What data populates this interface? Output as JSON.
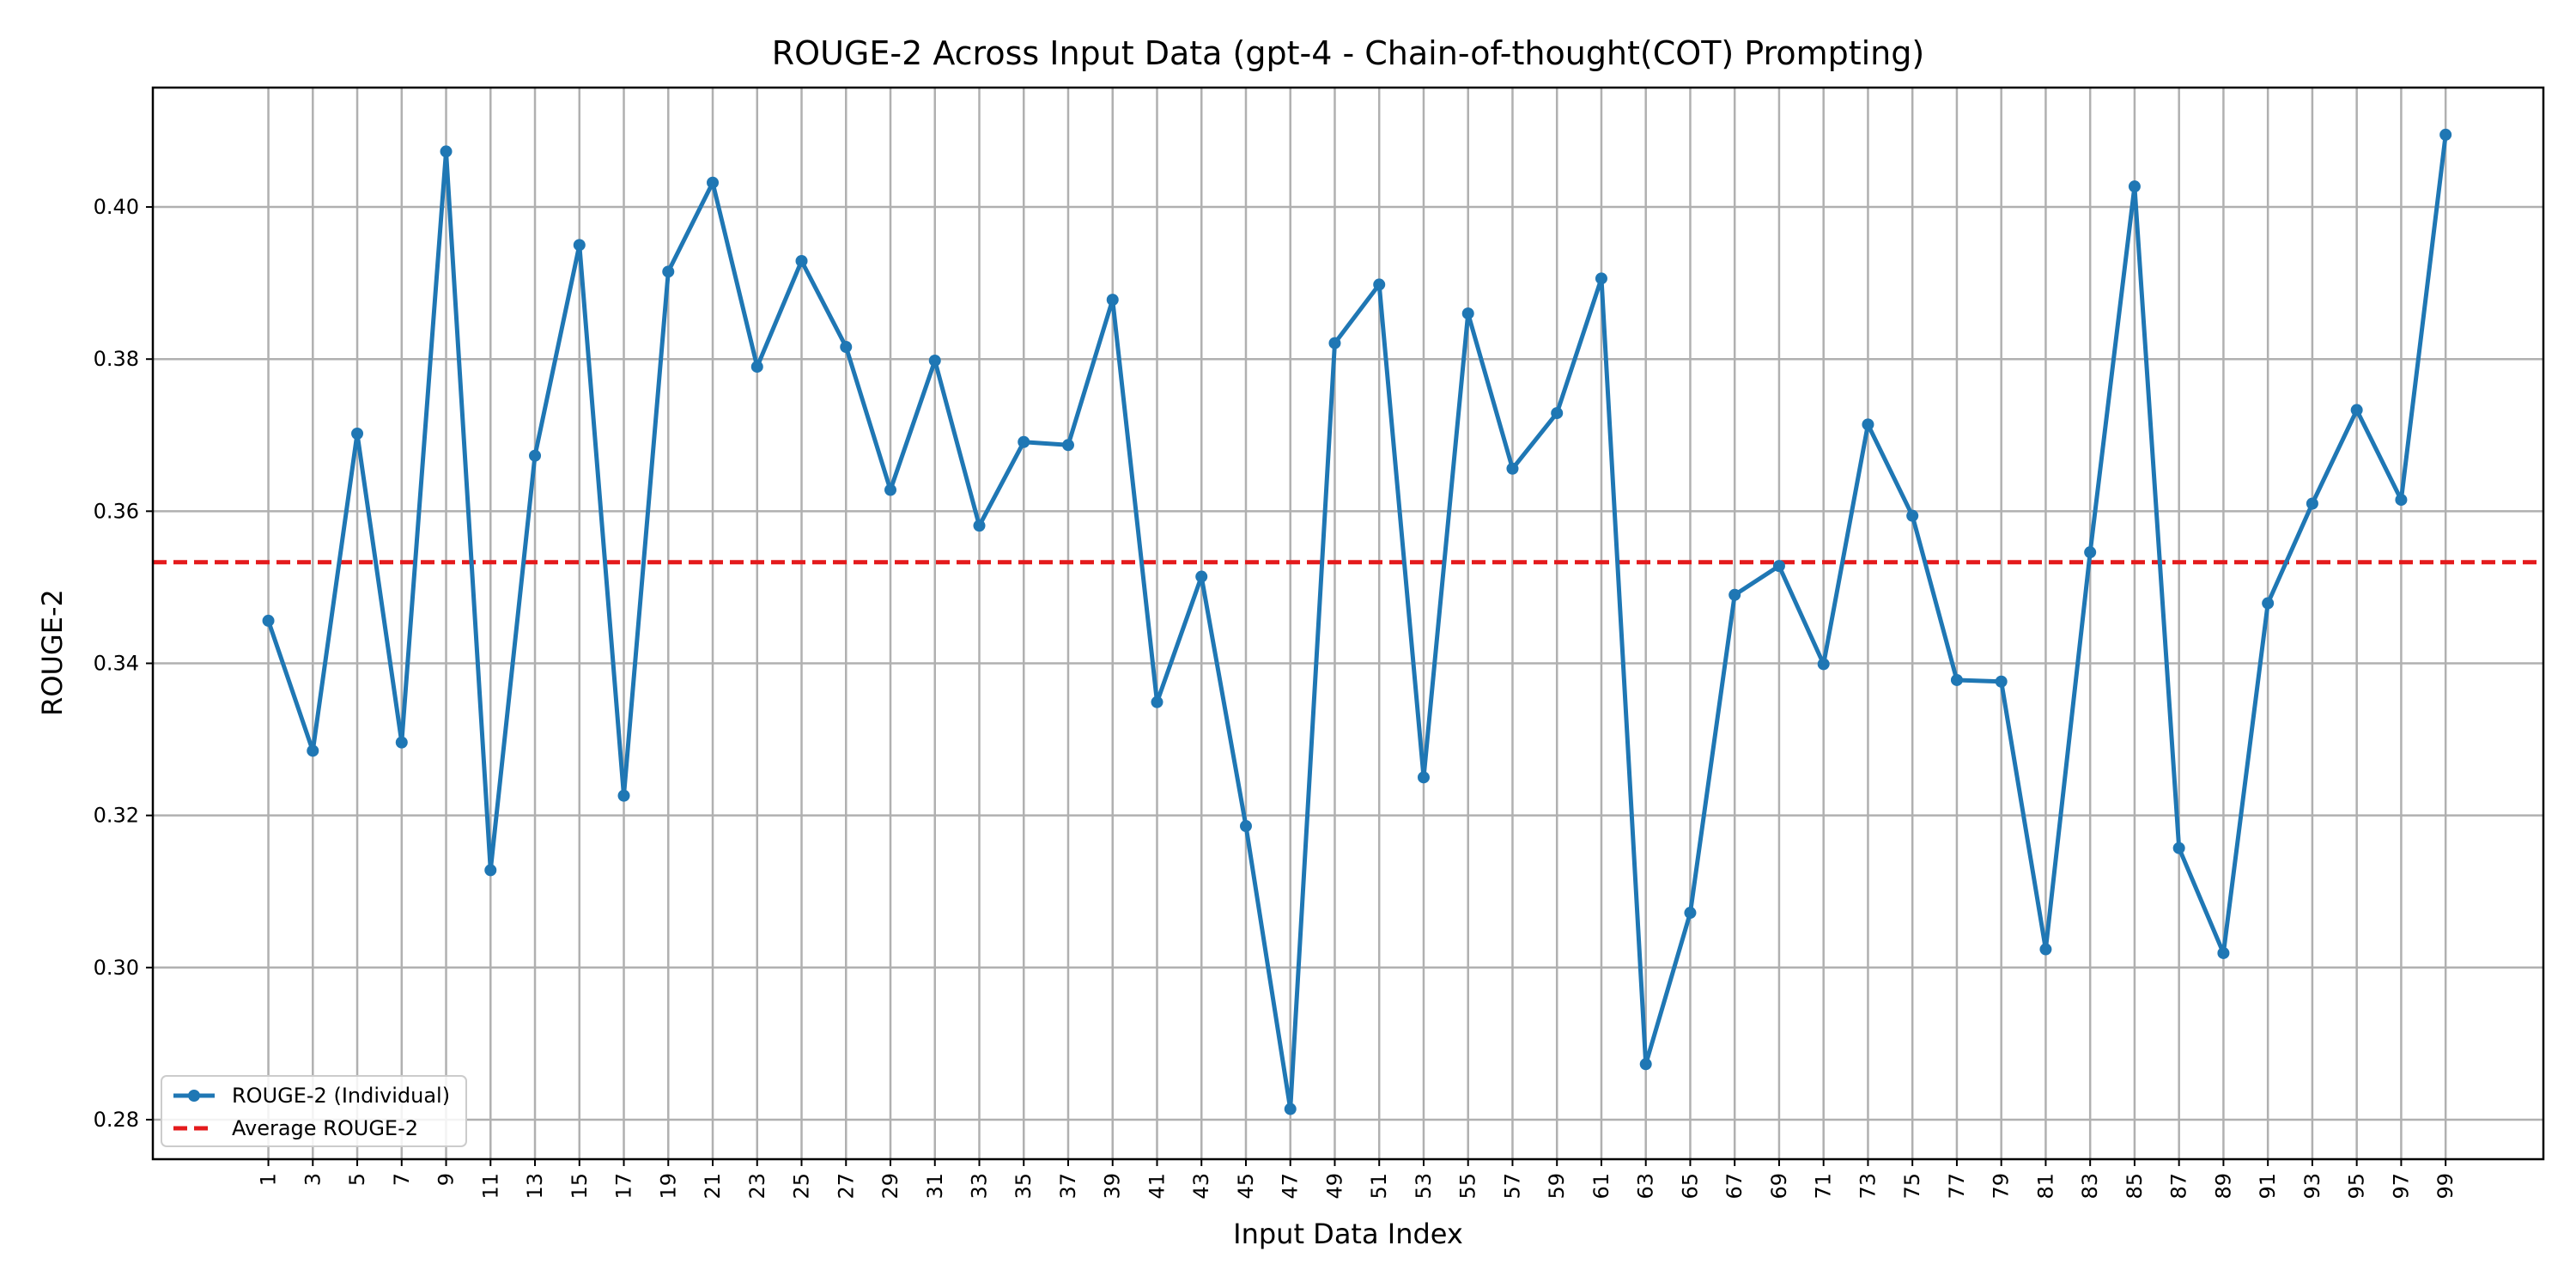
{
  "chart_data": {
    "type": "line",
    "title": "ROUGE-2 Across Input Data (gpt-4 - Chain-of-thought(COT) Prompting)",
    "xlabel": "Input Data Index",
    "ylabel": "ROUGE-2",
    "xlim": [
      -4.2,
      103.4
    ],
    "ylim": [
      0.2748,
      0.4157
    ],
    "x_ticks": [
      1,
      3,
      5,
      7,
      9,
      11,
      13,
      15,
      17,
      19,
      21,
      23,
      25,
      27,
      29,
      31,
      33,
      35,
      37,
      39,
      41,
      43,
      45,
      47,
      49,
      51,
      53,
      55,
      57,
      59,
      61,
      63,
      65,
      67,
      69,
      71,
      73,
      75,
      77,
      79,
      81,
      83,
      85,
      87,
      89,
      91,
      93,
      95,
      97,
      99
    ],
    "y_ticks": [
      0.28,
      0.3,
      0.32,
      0.34,
      0.36,
      0.38,
      0.4
    ],
    "y_tick_labels": [
      "0.28",
      "0.30",
      "0.32",
      "0.34",
      "0.36",
      "0.38",
      "0.40"
    ],
    "grid": true,
    "legend_position": "bottom-left",
    "series": [
      {
        "name": "ROUGE-2 (Individual)",
        "color": "#1f77b4",
        "x": [
          1,
          3,
          5,
          7,
          9,
          11,
          13,
          15,
          17,
          19,
          21,
          23,
          25,
          27,
          29,
          31,
          33,
          35,
          37,
          39,
          41,
          43,
          45,
          47,
          49,
          51,
          53,
          55,
          57,
          59,
          61,
          63,
          65,
          67,
          69,
          71,
          73,
          75,
          77,
          79,
          81,
          83,
          85,
          87,
          89,
          91,
          93,
          95,
          97,
          99
        ],
        "values": [
          0.3456,
          0.3285,
          0.3702,
          0.3296,
          0.4073,
          0.3128,
          0.3673,
          0.395,
          0.3226,
          0.3915,
          0.4032,
          0.379,
          0.3929,
          0.3816,
          0.3628,
          0.3798,
          0.3581,
          0.3691,
          0.3687,
          0.3878,
          0.3349,
          0.3514,
          0.3186,
          0.2814,
          0.3821,
          0.3898,
          0.325,
          0.386,
          0.3656,
          0.3729,
          0.3906,
          0.2873,
          0.3072,
          0.349,
          0.3528,
          0.3399,
          0.3714,
          0.3594,
          0.3378,
          0.3376,
          0.3024,
          0.3546,
          0.4027,
          0.3157,
          0.3019,
          0.3479,
          0.361,
          0.3733,
          0.3615,
          0.4095
        ]
      }
    ],
    "average": {
      "name": "Average ROUGE-2",
      "color": "#e41a1c",
      "value": 0.3533
    }
  }
}
